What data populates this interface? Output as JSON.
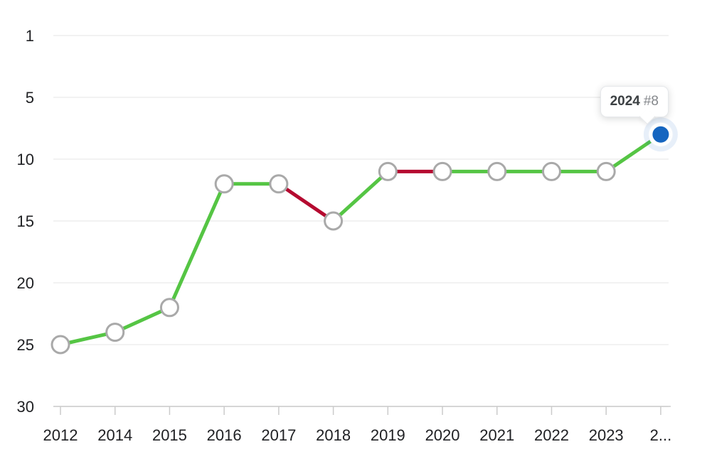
{
  "chart_data": {
    "type": "line",
    "categories": [
      "2012",
      "2014",
      "2015",
      "2016",
      "2017",
      "2018",
      "2019",
      "2020",
      "2021",
      "2022",
      "2023",
      "2024"
    ],
    "x_tick_display": [
      "2012",
      "2014",
      "2015",
      "2016",
      "2017",
      "2018",
      "2019",
      "2020",
      "2021",
      "2022",
      "2023",
      "2..."
    ],
    "values": [
      25,
      24,
      22,
      12,
      12,
      15,
      11,
      11,
      11,
      11,
      11,
      8
    ],
    "y_ticks": [
      1,
      5,
      10,
      15,
      20,
      25,
      30
    ],
    "y_axis_inverted": true,
    "grid": true,
    "legend": "none",
    "segment_colors": [
      "green",
      "green",
      "green",
      "green",
      "red",
      "green",
      "red",
      "green",
      "green",
      "green",
      "green"
    ],
    "highlight_index": 11,
    "tooltip": {
      "title": "2024",
      "value": "#8"
    },
    "colors": {
      "green": "#55c544",
      "red": "#b50a30",
      "highlight_blue": "#1565c0",
      "marker_stroke": "#a9a9a9",
      "marker_fill": "#ffffff",
      "grid_line": "#ededed",
      "axis_line": "#cbcbcb",
      "label_text": "#202124",
      "tooltip_title": "#3c4043",
      "tooltip_value": "#84878b"
    }
  }
}
